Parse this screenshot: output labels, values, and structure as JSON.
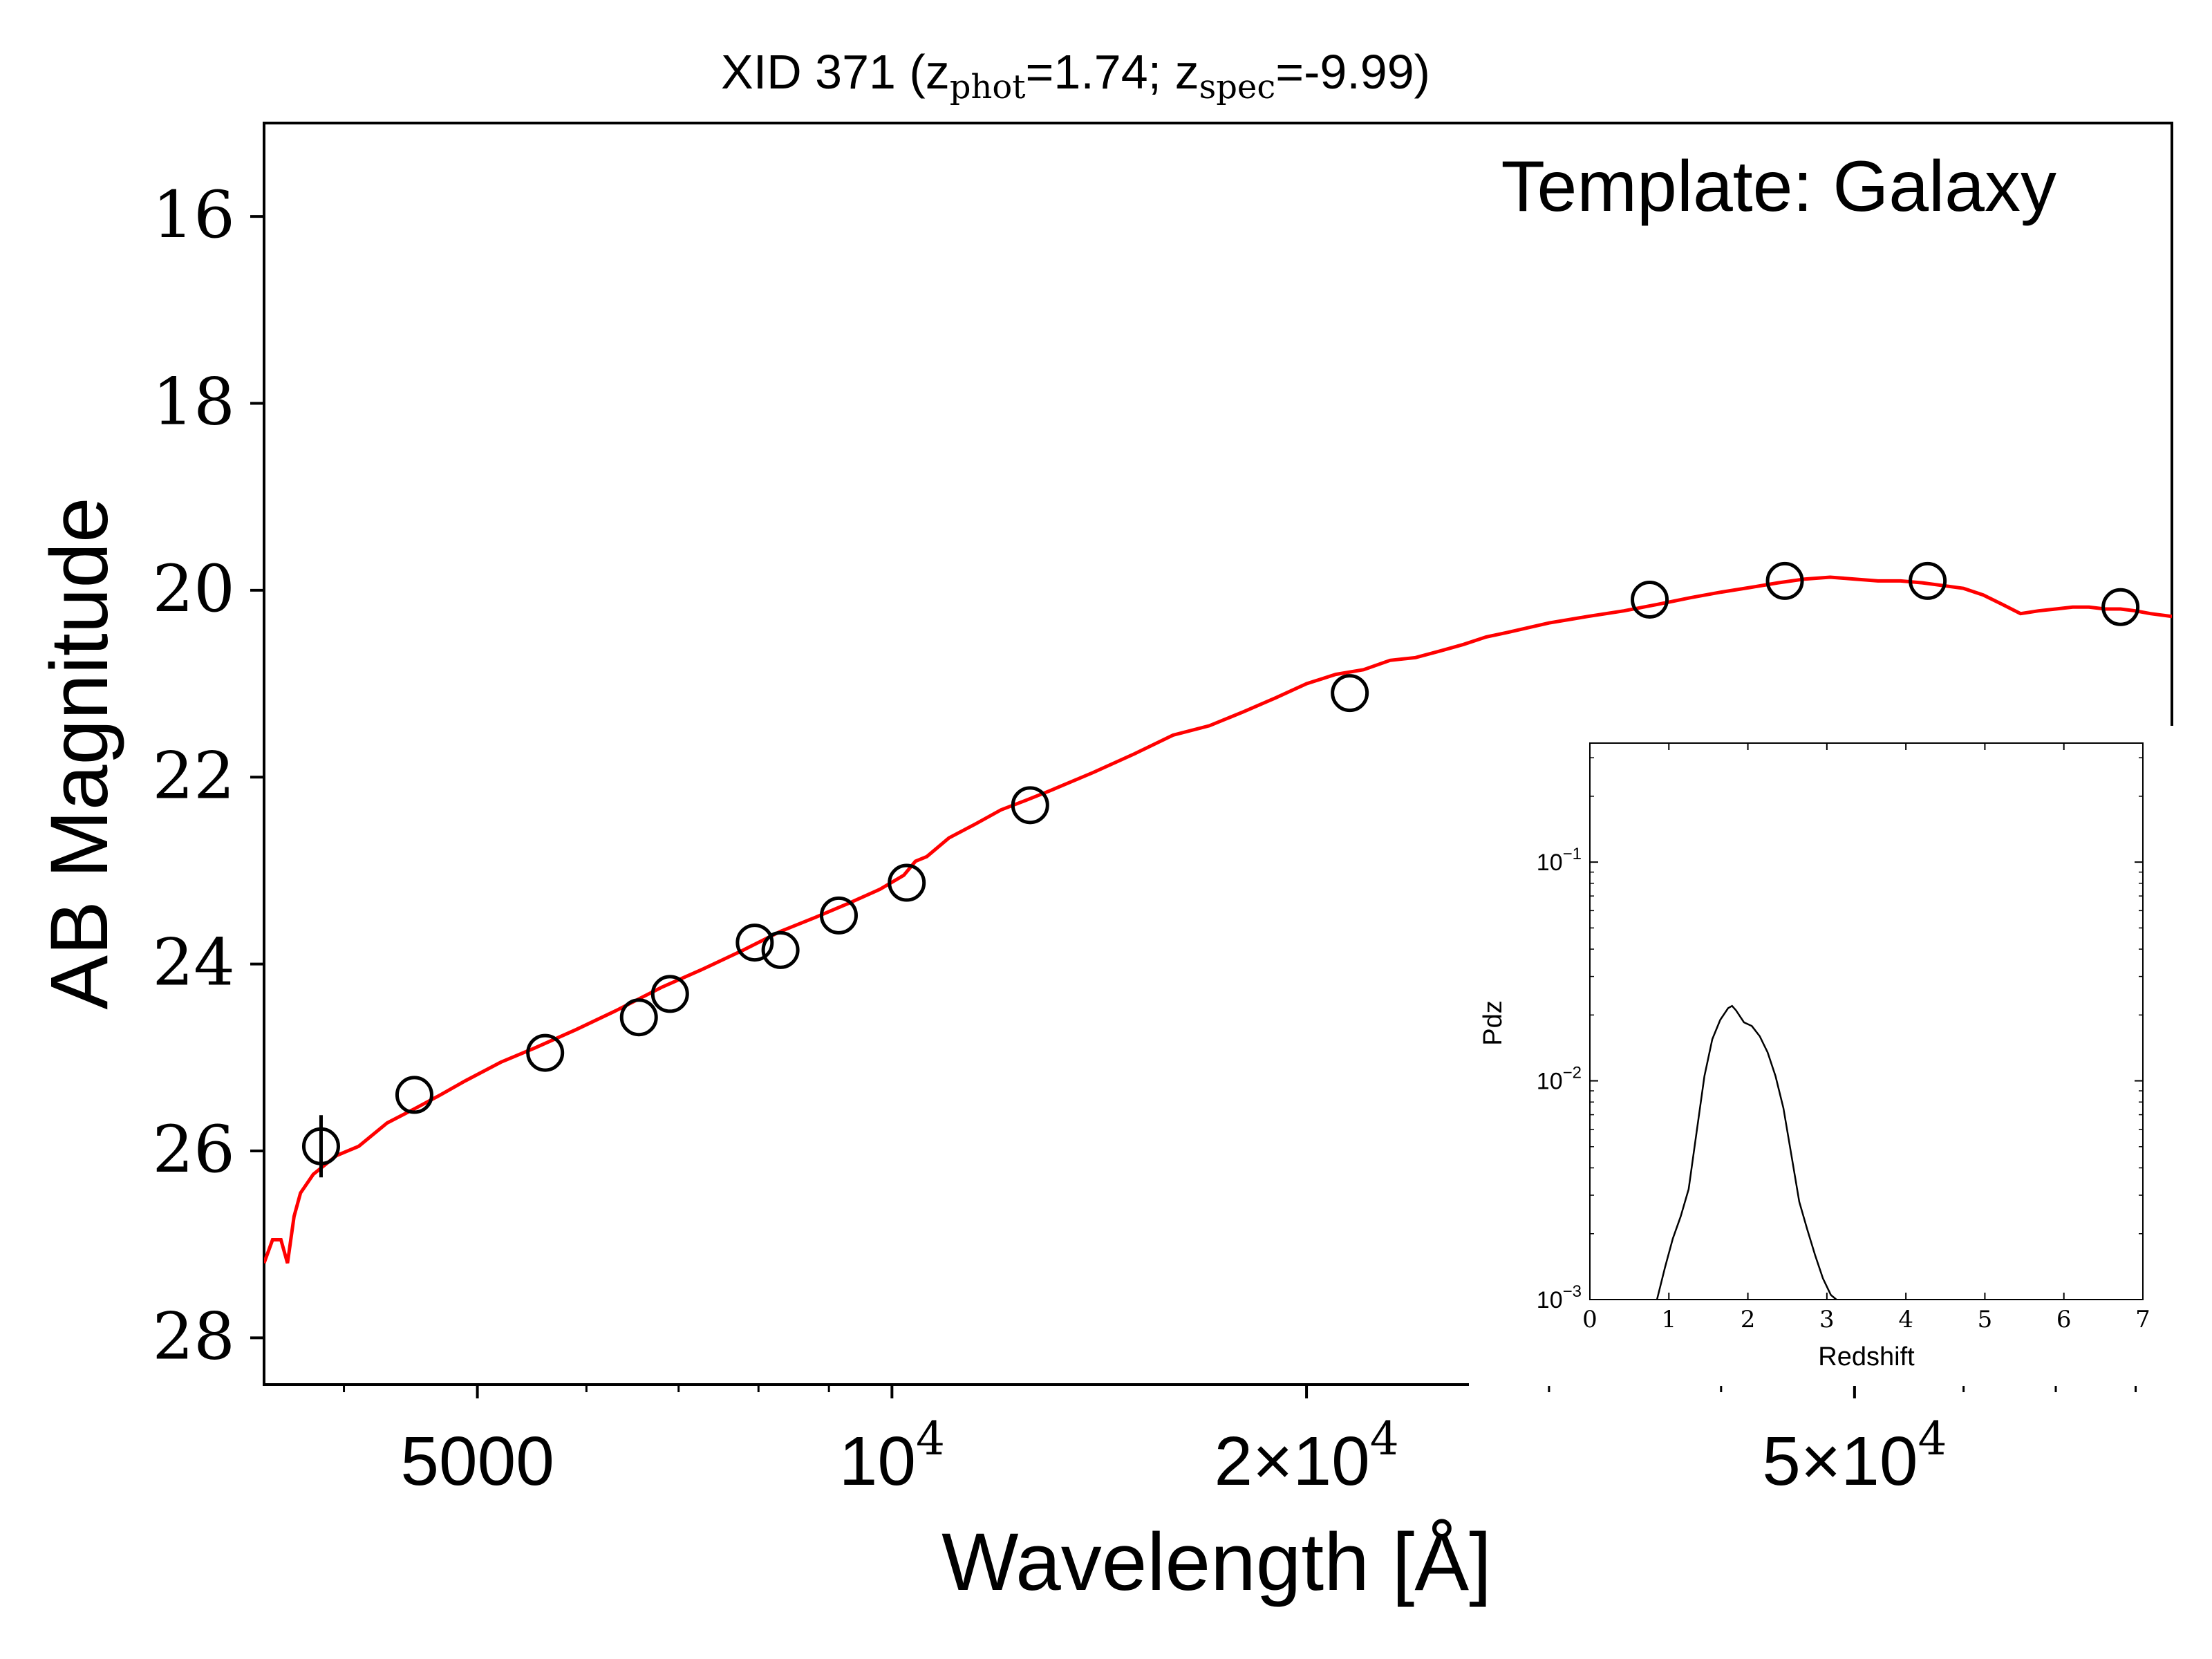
{
  "chart_data": [
    {
      "type": "line",
      "title": {
        "prefix": "XID 371 (z",
        "phot_sub": "phot",
        "phot_val": "=1.74; z",
        "spec_sub": "spec",
        "spec_val": "=-9.99)"
      },
      "annotation": "Template: Galaxy",
      "xlabel": "Wavelength [Å]",
      "ylabel": "AB Magnitude",
      "xscale": "log",
      "xlim": [
        3500,
        85000
      ],
      "ylim": [
        28.5,
        15
      ],
      "y_inverted": true,
      "grid": false,
      "x_ticks": [
        {
          "value": 5000,
          "base": "5000",
          "exp": ""
        },
        {
          "value": 10000,
          "base": "10",
          "exp": "4"
        },
        {
          "value": 20000,
          "base": "2×10",
          "exp": "4"
        },
        {
          "value": 50000,
          "base": "5×10",
          "exp": "4"
        }
      ],
      "y_ticks": [
        "16",
        "18",
        "20",
        "22",
        "24",
        "26",
        "28"
      ],
      "colors": {
        "model": "#ff0000",
        "points": "#000000"
      },
      "series": [
        {
          "role": "model template",
          "style": "red line",
          "x": [
            3500,
            3550,
            3600,
            3640,
            3680,
            3720,
            3800,
            3950,
            4100,
            4300,
            4500,
            4700,
            4900,
            5200,
            5500,
            5900,
            6300,
            6800,
            7300,
            7800,
            8300,
            8800,
            9300,
            9800,
            10200,
            10400,
            10600,
            11000,
            11500,
            12000,
            12500,
            13000,
            14000,
            15000,
            16000,
            17000,
            18000,
            19000,
            20000,
            21000,
            22000,
            23000,
            24000,
            25000,
            26000,
            27000,
            28000,
            30000,
            32000,
            34000,
            36000,
            38000,
            40000,
            42000,
            44000,
            46000,
            48000,
            50000,
            52000,
            54000,
            56000,
            58000,
            60000,
            62000,
            64000,
            66000,
            68000,
            70000,
            72000,
            74000,
            76000,
            78000,
            80000,
            82000,
            85000
          ],
          "y": [
            27.2,
            26.95,
            26.95,
            27.2,
            26.7,
            26.45,
            26.25,
            26.05,
            25.95,
            25.7,
            25.55,
            25.4,
            25.25,
            25.05,
            24.9,
            24.7,
            24.5,
            24.25,
            24.05,
            23.85,
            23.65,
            23.5,
            23.35,
            23.2,
            23.05,
            22.9,
            22.85,
            22.65,
            22.5,
            22.35,
            22.25,
            22.15,
            21.95,
            21.75,
            21.55,
            21.45,
            21.3,
            21.15,
            21.0,
            20.9,
            20.85,
            20.75,
            20.72,
            20.65,
            20.58,
            20.5,
            20.45,
            20.35,
            20.28,
            20.22,
            20.15,
            20.08,
            20.02,
            19.97,
            19.92,
            19.88,
            19.86,
            19.88,
            19.9,
            19.9,
            19.92,
            19.95,
            19.98,
            20.05,
            20.15,
            20.25,
            20.22,
            20.2,
            20.18,
            20.18,
            20.2,
            20.2,
            20.22,
            20.25,
            20.28
          ]
        },
        {
          "role": "observed photometry",
          "style": "open black circles",
          "x": [
            3850,
            4500,
            5600,
            6550,
            6900,
            7950,
            8300,
            9150,
            10250,
            12600,
            21500,
            35500,
            44500,
            56500,
            78000
          ],
          "y": [
            25.95,
            25.4,
            24.95,
            24.57,
            24.32,
            23.77,
            23.85,
            23.48,
            23.13,
            22.3,
            21.1,
            20.1,
            19.9,
            19.9,
            20.18
          ]
        }
      ]
    },
    {
      "type": "line",
      "xlabel": "Redshift",
      "ylabel": "Pdz",
      "xlim": [
        0,
        7
      ],
      "yscale": "log",
      "ylim": [
        0.001,
        0.35
      ],
      "x_ticks": [
        "0",
        "1",
        "2",
        "3",
        "4",
        "5",
        "6",
        "7"
      ],
      "y_ticks": [
        {
          "value": 0.1,
          "base": "10",
          "exp": "−1"
        },
        {
          "value": 0.01,
          "base": "10",
          "exp": "−2"
        },
        {
          "value": 0.001,
          "base": "10",
          "exp": "−3"
        }
      ],
      "series": [
        {
          "style": "thin black line",
          "x": [
            0.85,
            0.95,
            1.05,
            1.15,
            1.25,
            1.35,
            1.45,
            1.55,
            1.65,
            1.75,
            1.8,
            1.85,
            1.95,
            2.05,
            2.15,
            2.25,
            2.35,
            2.45,
            2.55,
            2.65,
            2.75,
            2.85,
            2.95,
            3.05,
            3.12
          ],
          "y": [
            0.001,
            0.0014,
            0.0019,
            0.0024,
            0.0032,
            0.0058,
            0.0105,
            0.0155,
            0.019,
            0.0215,
            0.022,
            0.021,
            0.0185,
            0.0178,
            0.016,
            0.0135,
            0.0105,
            0.0075,
            0.0046,
            0.0028,
            0.0021,
            0.0016,
            0.00125,
            0.00105,
            0.001
          ]
        }
      ]
    }
  ]
}
